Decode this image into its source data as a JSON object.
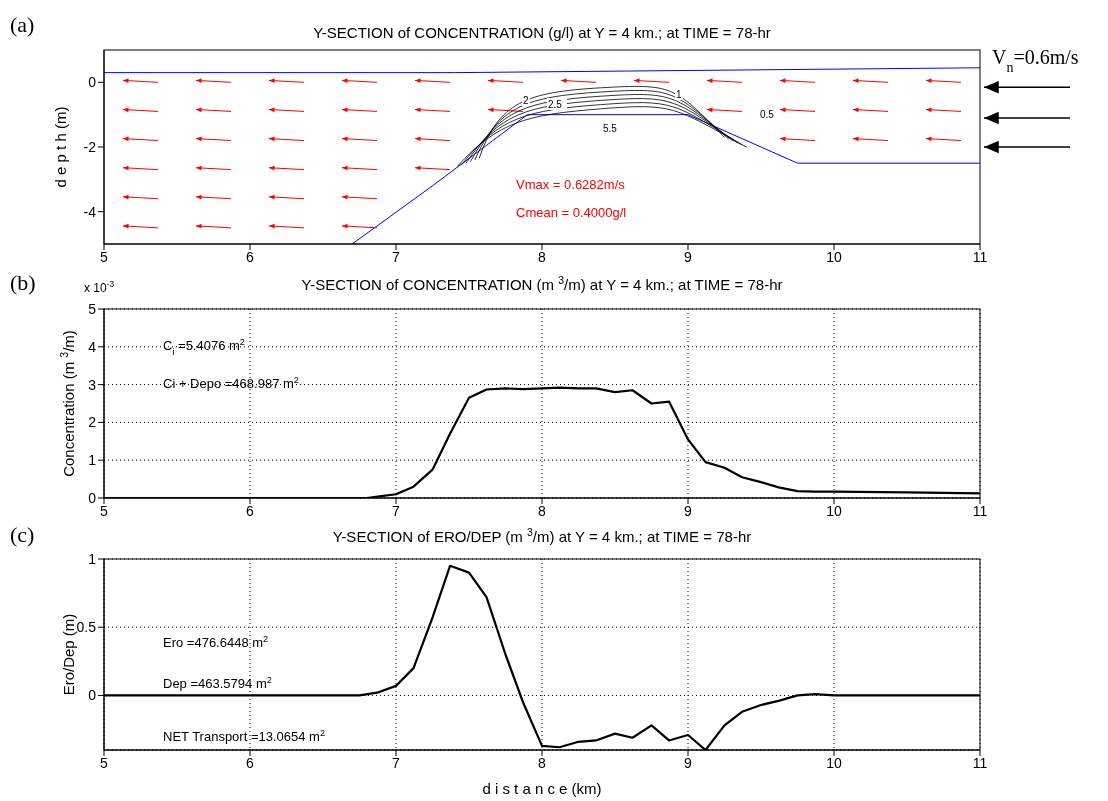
{
  "chart_data": [
    {
      "type": "line",
      "title": "Y-SECTION of CONCENTRATION (g/l) at Y = 4 km.; at TIME = 78-hr",
      "ylabel": "d e p t h (m)",
      "xlim": [
        5,
        11
      ],
      "xticks": [
        5,
        6,
        7,
        8,
        9,
        10,
        11
      ],
      "ylim": [
        -5,
        1
      ],
      "yticks": [
        -4,
        -2,
        0
      ],
      "grid": false,
      "marker": "none",
      "line_style": "solid",
      "series": [
        {
          "color": "#0000ff",
          "x": [
            5,
            7.4,
            11
          ],
          "values": [
            0.3,
            0.3,
            0.45
          ]
        },
        {
          "color": "#0000ff",
          "x": [
            6.7,
            7.25,
            7.9,
            9.0,
            9.75,
            11
          ],
          "values": [
            -5,
            -3.2,
            -1.0,
            -1.0,
            -2.5,
            -2.5
          ]
        }
      ],
      "annotations": [
        "(a)",
        "V$_{n}$=0.6m/s",
        "Vmax = 0.6282m/s",
        "Cmean = 0.4000g/l",
        "2",
        "2.5",
        "5.5",
        "1",
        "0.5"
      ]
    },
    {
      "type": "line",
      "title": "Y-SECTION of CONCENTRATION (m $^{3}$/m) at Y = 4 km.; at TIME = 78-hr",
      "ylabel": "Concentration (m $^{3}$/m)",
      "xlim": [
        5,
        11
      ],
      "xticks": [
        5,
        6,
        7,
        8,
        9,
        10,
        11
      ],
      "ylim": [
        0,
        5
      ],
      "yticks": [
        0,
        1,
        2,
        3,
        4,
        5
      ],
      "grid": true,
      "marker": "none",
      "line_style": "solid",
      "series": [
        {
          "color": "#000000",
          "x": [
            5,
            6,
            6.8,
            6.9,
            7.0,
            7.12,
            7.25,
            7.37,
            7.5,
            7.62,
            7.75,
            7.87,
            8.0,
            8.12,
            8.25,
            8.37,
            8.5,
            8.62,
            8.75,
            8.87,
            9.0,
            9.12,
            9.25,
            9.37,
            9.5,
            9.62,
            9.75,
            9.87,
            10,
            10.5,
            11
          ],
          "values": [
            0,
            0,
            0,
            0.05,
            0.1,
            0.3,
            0.75,
            1.7,
            2.65,
            2.87,
            2.9,
            2.88,
            2.9,
            2.92,
            2.9,
            2.9,
            2.8,
            2.85,
            2.5,
            2.55,
            1.55,
            0.95,
            0.8,
            0.55,
            0.42,
            0.28,
            0.18,
            0.17,
            0.17,
            0.15,
            0.12
          ]
        }
      ],
      "annotations": [
        "(b)",
        "x 10$^{-3}$",
        "C$_{i}$ =5.4076 m$^{2}$",
        "Ci + Depo =468.987 m$^{2}$"
      ]
    },
    {
      "type": "line",
      "title": "Y-SECTION of ERO/DEP (m $^{3}$/m) at Y = 4 km.; at TIME = 78-hr",
      "xlabel": "d i s t a n c e (km)",
      "ylabel": "Ero/Dep (m)",
      "xlim": [
        5,
        11
      ],
      "xticks": [
        5,
        6,
        7,
        8,
        9,
        10,
        11
      ],
      "ylim": [
        -0.4,
        1
      ],
      "yticks": [
        0,
        0.5,
        1
      ],
      "grid": true,
      "marker": "none",
      "line_style": "solid",
      "series": [
        {
          "color": "#000000",
          "x": [
            5,
            6,
            6.75,
            6.87,
            7.0,
            7.12,
            7.25,
            7.37,
            7.5,
            7.62,
            7.75,
            7.87,
            8.0,
            8.12,
            8.25,
            8.37,
            8.5,
            8.62,
            8.75,
            8.87,
            9.0,
            9.12,
            9.25,
            9.37,
            9.5,
            9.62,
            9.75,
            9.87,
            10,
            11
          ],
          "values": [
            0,
            0,
            0,
            0.02,
            0.07,
            0.2,
            0.57,
            0.95,
            0.9,
            0.72,
            0.3,
            -0.05,
            -0.37,
            -0.38,
            -0.34,
            -0.33,
            -0.28,
            -0.31,
            -0.22,
            -0.33,
            -0.29,
            -0.4,
            -0.22,
            -0.12,
            -0.07,
            -0.04,
            0,
            0.01,
            0,
            0
          ]
        }
      ],
      "annotations": [
        "(c)",
        "Ero =476.6448 m$^{2}$",
        "Dep =463.5794 m$^{2}$",
        "NET Transport =13.0654 m$^{2}$"
      ]
    }
  ]
}
